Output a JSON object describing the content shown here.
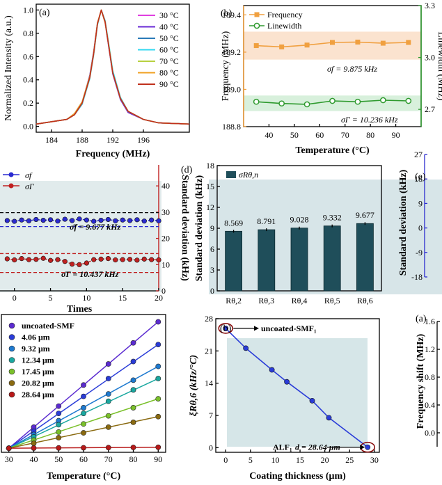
{
  "chart_data": [
    {
      "id": "a",
      "panel_label": "(a)",
      "type": "line",
      "xlabel": "Frequency (MHz)",
      "ylabel": "Normalized Intensity (a.u.)",
      "xlim": [
        182,
        202
      ],
      "ylim": [
        -0.05,
        1.05
      ],
      "xticks": [
        "184",
        "188",
        "192",
        "196"
      ],
      "yticks": [
        "0.0",
        "0.2",
        "0.4",
        "0.6",
        "0.8",
        "1.0"
      ],
      "legend_position": "top-right",
      "series": [
        {
          "name": "30 °C",
          "color": "#e040e0",
          "x": [
            182,
            184,
            186,
            187,
            188,
            189,
            189.5,
            190,
            190.5,
            191,
            191.5,
            192,
            193,
            194,
            196,
            198,
            202
          ],
          "y": [
            0.02,
            0.04,
            0.06,
            0.1,
            0.19,
            0.42,
            0.62,
            0.88,
            1.0,
            0.9,
            0.68,
            0.46,
            0.24,
            0.13,
            0.06,
            0.03,
            0.02
          ]
        },
        {
          "name": "40 °C",
          "color": "#6a2bd6",
          "x": [
            182,
            184,
            186,
            187,
            188,
            189,
            189.5,
            190,
            190.5,
            191,
            191.5,
            192,
            193,
            194,
            196,
            198,
            202
          ],
          "y": [
            0.02,
            0.04,
            0.06,
            0.1,
            0.2,
            0.44,
            0.64,
            0.89,
            1.0,
            0.89,
            0.67,
            0.45,
            0.23,
            0.12,
            0.06,
            0.03,
            0.02
          ]
        },
        {
          "name": "50 °C",
          "color": "#2a7ab8",
          "x": [
            182,
            184,
            186,
            187,
            188,
            189,
            189.5,
            190,
            190.5,
            191,
            191.5,
            192,
            193,
            194,
            196,
            198,
            202
          ],
          "y": [
            0.02,
            0.04,
            0.06,
            0.11,
            0.21,
            0.43,
            0.63,
            0.88,
            1.0,
            0.9,
            0.69,
            0.47,
            0.24,
            0.13,
            0.06,
            0.03,
            0.02
          ]
        },
        {
          "name": "60 °C",
          "color": "#30d8f0",
          "x": [
            182,
            184,
            186,
            187,
            188,
            189,
            189.5,
            190,
            190.5,
            191,
            191.5,
            192,
            193,
            194,
            196,
            198,
            202
          ],
          "y": [
            0.02,
            0.04,
            0.06,
            0.1,
            0.19,
            0.41,
            0.61,
            0.87,
            1.0,
            0.91,
            0.7,
            0.48,
            0.25,
            0.13,
            0.06,
            0.03,
            0.02
          ]
        },
        {
          "name": "70 °C",
          "color": "#b8d040",
          "x": [
            182,
            184,
            186,
            187,
            188,
            189,
            189.5,
            190,
            190.5,
            191,
            191.5,
            192,
            193,
            194,
            196,
            198,
            202
          ],
          "y": [
            0.02,
            0.04,
            0.06,
            0.1,
            0.2,
            0.42,
            0.62,
            0.88,
            1.0,
            0.9,
            0.69,
            0.46,
            0.24,
            0.13,
            0.06,
            0.03,
            0.02
          ]
        },
        {
          "name": "80 °C",
          "color": "#f0a020",
          "x": [
            182,
            184,
            186,
            187,
            188,
            189,
            189.5,
            190,
            190.5,
            191,
            191.5,
            192,
            193,
            194,
            196,
            198,
            202
          ],
          "y": [
            0.02,
            0.04,
            0.06,
            0.11,
            0.21,
            0.43,
            0.63,
            0.89,
            1.0,
            0.89,
            0.68,
            0.46,
            0.24,
            0.13,
            0.06,
            0.03,
            0.02
          ]
        },
        {
          "name": "90 °C",
          "color": "#c0301c",
          "x": [
            182,
            184,
            186,
            187,
            188,
            189,
            189.5,
            190,
            190.5,
            191,
            191.5,
            192,
            193,
            194,
            196,
            198,
            202
          ],
          "y": [
            0.02,
            0.04,
            0.06,
            0.1,
            0.2,
            0.42,
            0.62,
            0.88,
            1.0,
            0.9,
            0.68,
            0.46,
            0.24,
            0.13,
            0.06,
            0.03,
            0.02
          ]
        }
      ]
    },
    {
      "id": "b_top",
      "panel_label": "(b)",
      "type": "line",
      "xlabel": "Temperature (°C)",
      "ylabel": "Frequency (MHz)",
      "ylabel_right": "Linewidth (MHz)",
      "xlim": [
        30,
        100
      ],
      "ylim": [
        188.8,
        189.45
      ],
      "ylim_right": [
        2.6,
        3.3
      ],
      "xticks": [
        "40",
        "50",
        "60",
        "70",
        "80",
        "90"
      ],
      "yticks": [
        "188.8",
        "189.0",
        "189.2",
        "189.4"
      ],
      "yticks_right": [
        "2.7",
        "3.0",
        "3.3"
      ],
      "legend_position": "top-left",
      "annotations": [
        "σf = 9.875 kHz",
        "σΓ = 10.236 kHz"
      ],
      "series": [
        {
          "name": "Frequency",
          "color": "#f0a040",
          "axis": "left",
          "x": [
            35,
            45,
            55,
            65,
            75,
            85,
            95
          ],
          "y": [
            189.235,
            189.228,
            189.238,
            189.252,
            189.254,
            189.248,
            189.252
          ]
        },
        {
          "name": "Linewidth",
          "color": "#2e9a2e",
          "axis": "right",
          "x": [
            35,
            45,
            55,
            65,
            75,
            85,
            95
          ],
          "y": [
            2.744,
            2.734,
            2.729,
            2.749,
            2.744,
            2.753,
            2.749
          ]
        }
      ]
    },
    {
      "id": "c_left",
      "type": "line",
      "xlabel": "Times",
      "ylabel_right": "Standard deviation (kHz)",
      "xlim": [
        -2,
        20
      ],
      "ylim": [
        0,
        48
      ],
      "xticks": [
        "0",
        "5",
        "10",
        "15",
        "20"
      ],
      "yticks_right": [
        "0",
        "10",
        "20",
        "30",
        "40"
      ],
      "annotations": [
        "σ̄f = 9.677 kHz",
        "σ̄Γ = 10.437 kHz"
      ],
      "legend_position": "top-left",
      "series": [
        {
          "name": "σf",
          "color": "#2a2ad0",
          "x": [
            -1,
            0,
            1,
            2,
            3,
            4,
            5,
            6,
            7,
            8,
            9,
            10,
            11,
            12,
            13,
            14,
            15,
            16,
            17,
            18,
            19,
            20
          ],
          "y": [
            26.8,
            26.5,
            27.0,
            26.7,
            27.2,
            26.9,
            27.1,
            26.6,
            27.3,
            26.8,
            27.4,
            27.0,
            26.5,
            26.9,
            27.2,
            26.7,
            27.0,
            26.8,
            27.1,
            26.6,
            27.0,
            26.7
          ]
        },
        {
          "name": "σΓ",
          "color": "#c02020",
          "x": [
            -1,
            0,
            1,
            2,
            3,
            4,
            5,
            6,
            7,
            8,
            9,
            10,
            11,
            12,
            13,
            14,
            15,
            16,
            17,
            18,
            19,
            20
          ],
          "y": [
            12.2,
            11.8,
            12.3,
            11.9,
            12.0,
            12.4,
            11.6,
            11.9,
            11.2,
            10.2,
            10.0,
            10.6,
            11.9,
            12.1,
            12.3,
            11.8,
            11.9,
            12.0,
            11.7,
            12.1,
            11.9,
            11.8
          ]
        }
      ]
    },
    {
      "id": "d",
      "panel_label": "(d)",
      "type": "bar",
      "ylabel": "Standard deviation (kHz)",
      "legend": "σRθ,n",
      "ylim": [
        0,
        18
      ],
      "yticks": [
        "0",
        "3",
        "6",
        "9",
        "12",
        "15",
        "18"
      ],
      "categories": [
        "Rθ,2",
        "Rθ,3",
        "Rθ,4",
        "Rθ,5",
        "Rθ,6"
      ],
      "values": [
        8.569,
        8.791,
        9.028,
        9.332,
        9.677
      ],
      "value_labels": [
        "8.569",
        "8.791",
        "9.028",
        "9.332",
        "9.677"
      ]
    },
    {
      "id": "e_partial",
      "panel_label": "(e)",
      "type": "line",
      "ylabel": "Standard deviation (kHz)",
      "yticks": [
        "27",
        "18",
        "9",
        "0",
        "-9",
        "-18"
      ]
    },
    {
      "id": "bottom_a",
      "type": "scatter",
      "xlabel": "Temperature (°C)",
      "xlim": [
        27,
        93
      ],
      "ylim": [
        -0.05,
        1.65
      ],
      "xticks": [
        "30",
        "40",
        "50",
        "60",
        "70",
        "80",
        "90"
      ],
      "legend_position": "top-left",
      "series": [
        {
          "name": "uncoated-SMF",
          "color": "#5b2bd0",
          "x": [
            30,
            40,
            50,
            60,
            70,
            80,
            90
          ],
          "y": [
            0.0,
            0.26,
            0.52,
            0.78,
            1.04,
            1.3,
            1.56
          ]
        },
        {
          "name": "4.06 μm",
          "color": "#2a3cd8",
          "x": [
            30,
            40,
            50,
            60,
            70,
            80,
            90
          ],
          "y": [
            0.0,
            0.21,
            0.43,
            0.64,
            0.86,
            1.07,
            1.28
          ]
        },
        {
          "name": "9.32 μm",
          "color": "#1e7ad0",
          "x": [
            30,
            40,
            50,
            60,
            70,
            80,
            90
          ],
          "y": [
            0.0,
            0.17,
            0.34,
            0.5,
            0.67,
            0.84,
            1.01
          ]
        },
        {
          "name": "12.34 μm",
          "color": "#1aa8a0",
          "x": [
            30,
            40,
            50,
            60,
            70,
            80,
            90
          ],
          "y": [
            0.0,
            0.14,
            0.29,
            0.43,
            0.58,
            0.72,
            0.86
          ]
        },
        {
          "name": "17.45 μm",
          "color": "#7ac02a",
          "x": [
            30,
            40,
            50,
            60,
            70,
            80,
            90
          ],
          "y": [
            0.0,
            0.1,
            0.2,
            0.3,
            0.4,
            0.5,
            0.61
          ]
        },
        {
          "name": "20.82 μm",
          "color": "#8a6a10",
          "x": [
            30,
            40,
            50,
            60,
            70,
            80,
            90
          ],
          "y": [
            0.0,
            0.06,
            0.13,
            0.19,
            0.26,
            0.32,
            0.39
          ]
        },
        {
          "name": "28.64 μm",
          "color": "#b81818",
          "x": [
            30,
            40,
            50,
            60,
            70,
            80,
            90
          ],
          "y": [
            0.0,
            0.002,
            0.004,
            0.006,
            0.008,
            0.01,
            0.012
          ]
        }
      ]
    },
    {
      "id": "bottom_b",
      "panel_label": "(b)",
      "type": "line",
      "xlabel": "Coating thickness (μm)",
      "ylabel": "ξRθ,6 (kHz/°C)",
      "xlim": [
        -2,
        31
      ],
      "ylim": [
        -1,
        28
      ],
      "xticks": [
        "0",
        "5",
        "10",
        "15",
        "20",
        "25",
        "30"
      ],
      "yticks": [
        "0",
        "7",
        "14",
        "21",
        "28"
      ],
      "annotations": [
        "uncoated-SMF₁",
        "ALF₁",
        "d = 28.64 μm"
      ],
      "series": [
        {
          "name": "",
          "color": "#2a3cd8",
          "x": [
            0,
            4.06,
            9.32,
            12.34,
            17.45,
            20.82,
            28.64
          ],
          "y": [
            25.9,
            21.6,
            16.9,
            14.3,
            10.2,
            6.5,
            0.1
          ]
        }
      ]
    },
    {
      "id": "bottom_c_partial",
      "panel_label": "(a)",
      "type": "line",
      "ylabel": "Frequency shift (MHz)",
      "yticks": [
        "1.6",
        "1.2",
        "0.8",
        "0.4",
        "0.0"
      ]
    }
  ]
}
